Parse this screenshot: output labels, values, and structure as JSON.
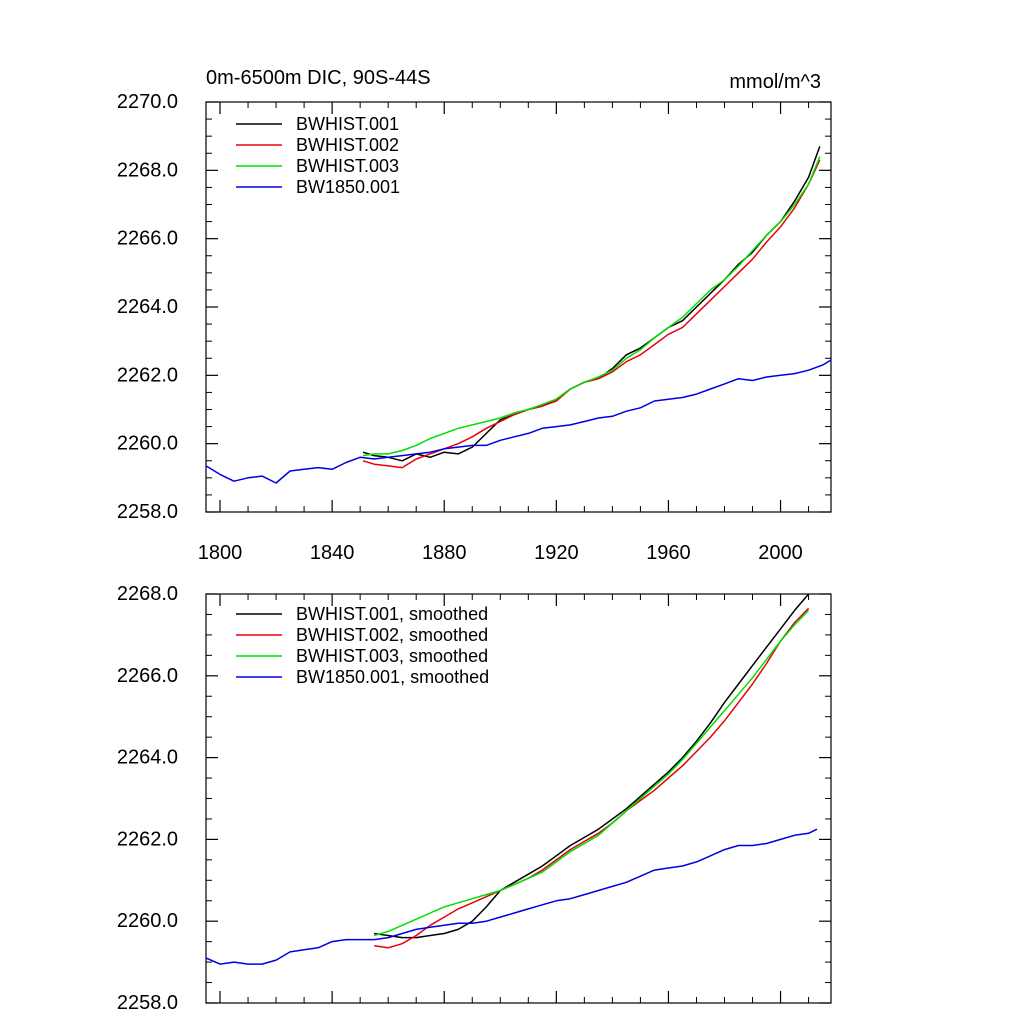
{
  "colors": {
    "BWHIST.001": "#000000",
    "BWHIST.002": "#e8000b",
    "BWHIST.003": "#00e000",
    "BW1850.001": "#0000e0"
  },
  "chart_data": [
    {
      "type": "line",
      "title_left": "0m-6500m DIC, 90S-44S",
      "title_right": "mmol/m^3",
      "xlabel": "",
      "ylabel": "",
      "xlim": [
        1795,
        2018
      ],
      "ylim": [
        2258,
        2270
      ],
      "xticks": [
        "1800",
        "1840",
        "1880",
        "1920",
        "1960",
        "2000"
      ],
      "yticks": [
        "2258.0",
        "2260.0",
        "2262.0",
        "2264.0",
        "2266.0",
        "2268.0",
        "2270.0"
      ],
      "grid": false,
      "legend": "top-left",
      "series": [
        {
          "name": "BWHIST.001",
          "color": "#000000",
          "x": [
            1851,
            1855,
            1860,
            1865,
            1870,
            1875,
            1880,
            1885,
            1890,
            1895,
            1900,
            1905,
            1910,
            1915,
            1920,
            1925,
            1930,
            1935,
            1940,
            1945,
            1950,
            1955,
            1960,
            1965,
            1970,
            1975,
            1980,
            1985,
            1990,
            1995,
            2000,
            2005,
            2010,
            2014
          ],
          "y": [
            2259.75,
            2259.65,
            2259.6,
            2259.5,
            2259.7,
            2259.6,
            2259.75,
            2259.7,
            2259.9,
            2260.3,
            2260.7,
            2260.85,
            2261.0,
            2261.1,
            2261.3,
            2261.6,
            2261.8,
            2261.9,
            2262.2,
            2262.6,
            2262.8,
            2263.1,
            2263.4,
            2263.6,
            2264.0,
            2264.4,
            2264.8,
            2265.25,
            2265.6,
            2266.1,
            2266.5,
            2267.1,
            2267.8,
            2268.7
          ]
        },
        {
          "name": "BWHIST.002",
          "color": "#e8000b",
          "x": [
            1851,
            1855,
            1860,
            1865,
            1870,
            1875,
            1880,
            1885,
            1890,
            1895,
            1900,
            1905,
            1910,
            1915,
            1920,
            1925,
            1930,
            1935,
            1940,
            1945,
            1950,
            1955,
            1960,
            1965,
            1970,
            1975,
            1980,
            1985,
            1990,
            1995,
            2000,
            2005,
            2010,
            2014
          ],
          "y": [
            2259.5,
            2259.4,
            2259.35,
            2259.3,
            2259.55,
            2259.7,
            2259.85,
            2260.0,
            2260.2,
            2260.45,
            2260.65,
            2260.85,
            2261.0,
            2261.1,
            2261.25,
            2261.6,
            2261.8,
            2261.9,
            2262.1,
            2262.4,
            2262.6,
            2262.9,
            2263.2,
            2263.4,
            2263.8,
            2264.2,
            2264.6,
            2265.0,
            2265.4,
            2265.9,
            2266.35,
            2266.9,
            2267.6,
            2268.3
          ]
        },
        {
          "name": "BWHIST.003",
          "color": "#00e000",
          "x": [
            1851,
            1855,
            1860,
            1865,
            1870,
            1875,
            1880,
            1885,
            1890,
            1895,
            1900,
            1905,
            1910,
            1915,
            1920,
            1925,
            1930,
            1935,
            1940,
            1945,
            1950,
            1955,
            1960,
            1965,
            1970,
            1975,
            1980,
            1985,
            1990,
            1995,
            2000,
            2005,
            2010,
            2014
          ],
          "y": [
            2259.65,
            2259.7,
            2259.7,
            2259.8,
            2259.95,
            2260.15,
            2260.3,
            2260.45,
            2260.55,
            2260.65,
            2260.75,
            2260.9,
            2261.0,
            2261.15,
            2261.3,
            2261.6,
            2261.8,
            2261.95,
            2262.15,
            2262.5,
            2262.75,
            2263.1,
            2263.4,
            2263.7,
            2264.1,
            2264.5,
            2264.8,
            2265.2,
            2265.65,
            2266.1,
            2266.5,
            2267.0,
            2267.6,
            2268.4
          ]
        },
        {
          "name": "BW1850.001",
          "color": "#0000e0",
          "x": [
            1795,
            1800,
            1805,
            1810,
            1815,
            1820,
            1825,
            1830,
            1835,
            1840,
            1845,
            1850,
            1855,
            1860,
            1865,
            1870,
            1875,
            1880,
            1885,
            1890,
            1895,
            1900,
            1905,
            1910,
            1915,
            1920,
            1925,
            1930,
            1935,
            1940,
            1945,
            1950,
            1955,
            1960,
            1965,
            1970,
            1975,
            1980,
            1985,
            1990,
            1995,
            2000,
            2005,
            2010,
            2015,
            2018
          ],
          "y": [
            2259.35,
            2259.1,
            2258.9,
            2259.0,
            2259.05,
            2258.85,
            2259.2,
            2259.25,
            2259.3,
            2259.25,
            2259.45,
            2259.6,
            2259.55,
            2259.6,
            2259.65,
            2259.7,
            2259.75,
            2259.85,
            2259.9,
            2259.95,
            2259.95,
            2260.1,
            2260.2,
            2260.3,
            2260.45,
            2260.5,
            2260.55,
            2260.65,
            2260.75,
            2260.8,
            2260.95,
            2261.05,
            2261.25,
            2261.3,
            2261.35,
            2261.45,
            2261.6,
            2261.75,
            2261.9,
            2261.85,
            2261.95,
            2262.0,
            2262.05,
            2262.15,
            2262.3,
            2262.45
          ]
        }
      ]
    },
    {
      "type": "line",
      "title_left": "",
      "title_right": "",
      "xlabel": "",
      "ylabel": "",
      "xlim": [
        1795,
        2018
      ],
      "ylim": [
        2258,
        2268
      ],
      "xticks": [],
      "yticks": [
        "2258.0",
        "2260.0",
        "2262.0",
        "2264.0",
        "2266.0",
        "2268.0"
      ],
      "grid": false,
      "legend": "top-left",
      "series": [
        {
          "name": "BWHIST.001, smoothed",
          "color": "#000000",
          "x": [
            1855,
            1860,
            1865,
            1870,
            1875,
            1880,
            1885,
            1890,
            1895,
            1900,
            1905,
            1910,
            1915,
            1920,
            1925,
            1930,
            1935,
            1940,
            1945,
            1950,
            1955,
            1960,
            1965,
            1970,
            1975,
            1980,
            1985,
            1990,
            1995,
            2000,
            2005,
            2010
          ],
          "y": [
            2259.7,
            2259.65,
            2259.6,
            2259.6,
            2259.65,
            2259.7,
            2259.8,
            2260.0,
            2260.35,
            2260.75,
            2260.95,
            2261.15,
            2261.35,
            2261.6,
            2261.85,
            2262.05,
            2262.25,
            2262.5,
            2262.75,
            2263.05,
            2263.35,
            2263.65,
            2264.0,
            2264.4,
            2264.85,
            2265.35,
            2265.8,
            2266.25,
            2266.7,
            2267.15,
            2267.6,
            2268.0
          ]
        },
        {
          "name": "BWHIST.002, smoothed",
          "color": "#e8000b",
          "x": [
            1855,
            1860,
            1865,
            1870,
            1875,
            1880,
            1885,
            1890,
            1895,
            1900,
            1905,
            1910,
            1915,
            1920,
            1925,
            1930,
            1935,
            1940,
            1945,
            1950,
            1955,
            1960,
            1965,
            1970,
            1975,
            1980,
            1985,
            1990,
            1995,
            2000,
            2005,
            2010
          ],
          "y": [
            2259.4,
            2259.35,
            2259.45,
            2259.65,
            2259.9,
            2260.1,
            2260.3,
            2260.45,
            2260.6,
            2260.75,
            2260.9,
            2261.05,
            2261.25,
            2261.5,
            2261.75,
            2261.95,
            2262.15,
            2262.4,
            2262.7,
            2262.95,
            2263.2,
            2263.5,
            2263.8,
            2264.15,
            2264.5,
            2264.9,
            2265.35,
            2265.8,
            2266.3,
            2266.85,
            2267.3,
            2267.65
          ]
        },
        {
          "name": "BWHIST.003, smoothed",
          "color": "#00e000",
          "x": [
            1855,
            1860,
            1865,
            1870,
            1875,
            1880,
            1885,
            1890,
            1895,
            1900,
            1905,
            1910,
            1915,
            1920,
            1925,
            1930,
            1935,
            1940,
            1945,
            1950,
            1955,
            1960,
            1965,
            1970,
            1975,
            1980,
            1985,
            1990,
            1995,
            2000,
            2005,
            2010
          ],
          "y": [
            2259.65,
            2259.75,
            2259.9,
            2260.05,
            2260.2,
            2260.35,
            2260.45,
            2260.55,
            2260.65,
            2260.75,
            2260.9,
            2261.05,
            2261.2,
            2261.45,
            2261.7,
            2261.9,
            2262.1,
            2262.4,
            2262.7,
            2263.0,
            2263.3,
            2263.6,
            2263.95,
            2264.35,
            2264.75,
            2265.15,
            2265.55,
            2265.95,
            2266.4,
            2266.85,
            2267.25,
            2267.6
          ]
        },
        {
          "name": "BW1850.001, smoothed",
          "color": "#0000e0",
          "x": [
            1795,
            1800,
            1805,
            1810,
            1815,
            1820,
            1825,
            1830,
            1835,
            1840,
            1845,
            1850,
            1855,
            1860,
            1865,
            1870,
            1875,
            1880,
            1885,
            1890,
            1895,
            1900,
            1905,
            1910,
            1915,
            1920,
            1925,
            1930,
            1935,
            1940,
            1945,
            1950,
            1955,
            1960,
            1965,
            1970,
            1975,
            1980,
            1985,
            1990,
            1995,
            2000,
            2005,
            2010,
            2013
          ],
          "y": [
            2259.1,
            2258.95,
            2259.0,
            2258.95,
            2258.95,
            2259.05,
            2259.25,
            2259.3,
            2259.35,
            2259.5,
            2259.55,
            2259.55,
            2259.55,
            2259.6,
            2259.7,
            2259.8,
            2259.85,
            2259.9,
            2259.95,
            2259.95,
            2260.0,
            2260.1,
            2260.2,
            2260.3,
            2260.4,
            2260.5,
            2260.55,
            2260.65,
            2260.75,
            2260.85,
            2260.95,
            2261.1,
            2261.25,
            2261.3,
            2261.35,
            2261.45,
            2261.6,
            2261.75,
            2261.85,
            2261.85,
            2261.9,
            2262.0,
            2262.1,
            2262.15,
            2262.25
          ]
        }
      ]
    }
  ]
}
